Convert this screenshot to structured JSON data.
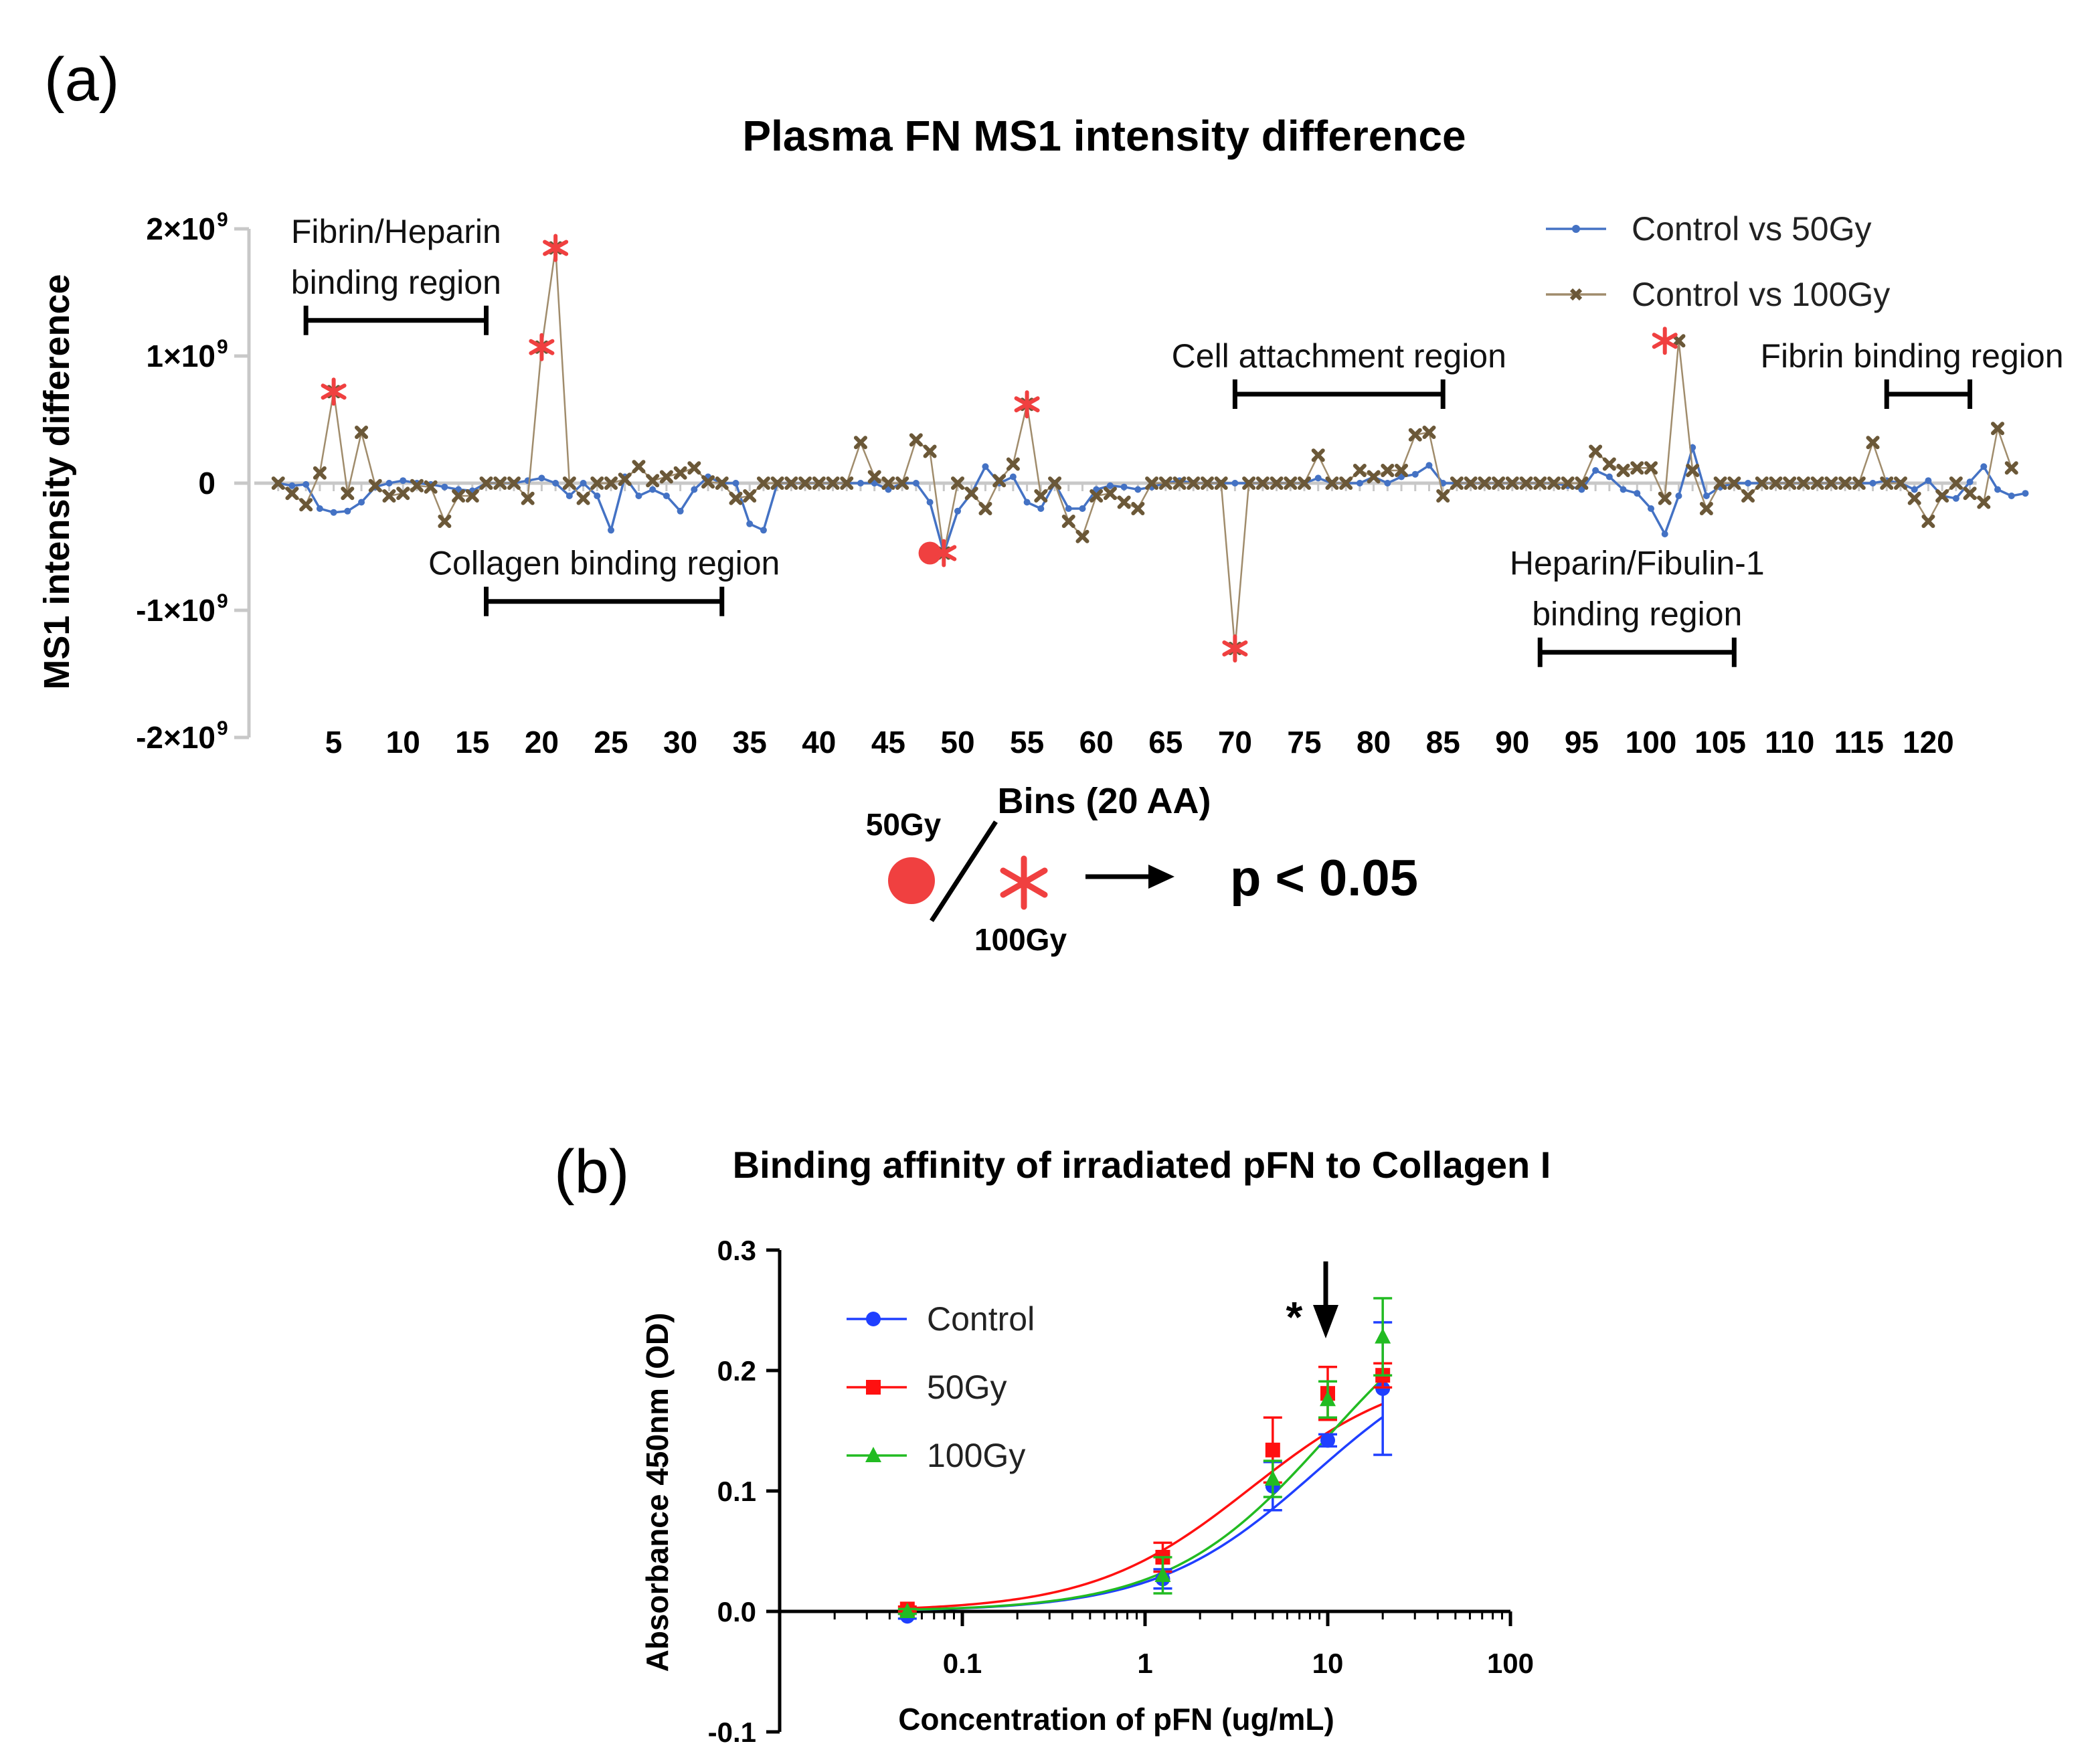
{
  "panel_a": {
    "letter": "(a)",
    "annotation": {
      "dose_50": "50Gy",
      "dose_100": "100Gy",
      "significance": "p < 0.05"
    }
  },
  "panel_b": {
    "letter": "(b)",
    "significance_mark": "*"
  },
  "chart_data": [
    {
      "type": "line",
      "title": "Plasma FN MS1 intensity difference",
      "xlabel": "Bins (20 AA)",
      "ylabel": "MS1 intensity difference",
      "xlim": [
        1,
        123
      ],
      "ylim": [
        -2000000000,
        2000000000
      ],
      "x_ticks": [
        5,
        10,
        15,
        20,
        25,
        30,
        35,
        40,
        45,
        50,
        55,
        60,
        65,
        70,
        75,
        80,
        85,
        90,
        95,
        100,
        105,
        110,
        115,
        120
      ],
      "y_ticks": [
        {
          "value": 2000000000,
          "label": "2×10",
          "exp": "9"
        },
        {
          "value": 1000000000,
          "label": "1×10",
          "exp": "9"
        },
        {
          "value": 0,
          "label": "0",
          "exp": ""
        },
        {
          "value": -1000000000,
          "label": "-1×10",
          "exp": "9"
        },
        {
          "value": -2000000000,
          "label": "-2×10",
          "exp": "9"
        }
      ],
      "legend_position": "top-right",
      "series": [
        {
          "name": "Control vs 50Gy",
          "color": "#4472c4",
          "marker": "dot",
          "values_e9": [
            0,
            -0.02,
            -0.01,
            -0.2,
            -0.23,
            -0.22,
            -0.15,
            -0.03,
            0,
            0.02,
            0,
            -0.01,
            -0.03,
            -0.05,
            -0.06,
            0,
            0,
            0,
            0.02,
            0.04,
            0,
            -0.1,
            0,
            -0.1,
            -0.37,
            0.05,
            -0.1,
            -0.05,
            -0.1,
            -0.22,
            -0.05,
            0.05,
            0,
            0,
            -0.32,
            -0.37,
            0,
            0,
            0,
            0,
            0,
            0,
            0,
            0,
            -0.05,
            0,
            0,
            -0.15,
            -0.55,
            -0.22,
            -0.08,
            0.13,
            0,
            0.05,
            -0.15,
            -0.2,
            0,
            -0.2,
            -0.2,
            -0.05,
            -0.02,
            -0.03,
            -0.05,
            -0.03,
            0,
            0.02,
            0,
            0,
            0,
            0,
            0,
            0,
            0,
            0,
            0,
            0.04,
            0,
            0,
            0,
            0.05,
            0,
            0.05,
            0.07,
            0.14,
            0,
            0,
            0,
            0,
            0,
            0,
            0,
            0,
            0,
            -0.02,
            -0.05,
            0.1,
            0.05,
            -0.05,
            -0.08,
            -0.2,
            -0.4,
            -0.1,
            0.28,
            -0.1,
            -0.03,
            0,
            0,
            0,
            0,
            0,
            0,
            0,
            0,
            0,
            0,
            0,
            0.02,
            0,
            -0.05,
            0.02,
            -0.1,
            -0.12,
            0.01,
            0.13,
            -0.05,
            -0.1,
            -0.08
          ]
        },
        {
          "name": "Control vs 100Gy",
          "color": "#a08c6c",
          "marker": "x",
          "values_e9": [
            0,
            -0.08,
            -0.17,
            0.08,
            0.72,
            -0.08,
            0.4,
            -0.02,
            -0.1,
            -0.08,
            -0.02,
            -0.03,
            -0.3,
            -0.1,
            -0.1,
            0,
            0,
            0,
            -0.12,
            1.07,
            1.85,
            0,
            -0.12,
            0,
            0,
            0.03,
            0.13,
            0.02,
            0.05,
            0.08,
            0.12,
            0.01,
            0,
            -0.12,
            -0.1,
            0,
            0,
            0,
            0,
            0,
            0,
            0,
            0.32,
            0.05,
            0,
            0,
            0.34,
            0.25,
            -0.55,
            0,
            -0.08,
            -0.2,
            0.02,
            0.15,
            0.62,
            -0.1,
            0,
            -0.3,
            -0.42,
            -0.1,
            -0.08,
            -0.15,
            -0.2,
            0,
            0,
            0,
            0,
            0,
            0,
            -1.3,
            0,
            0,
            0,
            0,
            0,
            0.22,
            0,
            0,
            0.1,
            0.05,
            0.1,
            0.1,
            0.38,
            0.4,
            -0.1,
            0,
            0,
            0,
            0,
            0,
            0,
            0,
            0,
            0,
            0,
            0.25,
            0.15,
            0.1,
            0.12,
            0.12,
            -0.12,
            1.12,
            0.1,
            -0.2,
            0,
            0,
            -0.1,
            0,
            0,
            0,
            0,
            0,
            0,
            0,
            0,
            0.32,
            0,
            0,
            -0.12,
            -0.3,
            -0.1,
            0,
            -0.08,
            -0.15,
            0.43,
            0.12
          ]
        }
      ],
      "significant_points": [
        {
          "x": 5,
          "y_e9": 0.72,
          "marker": "asterisk"
        },
        {
          "x": 20,
          "y_e9": 1.07,
          "marker": "asterisk"
        },
        {
          "x": 21,
          "y_e9": 1.85,
          "marker": "asterisk"
        },
        {
          "x": 48,
          "y_e9": -0.55,
          "marker": "dot"
        },
        {
          "x": 49,
          "y_e9": -0.55,
          "marker": "asterisk"
        },
        {
          "x": 55,
          "y_e9": 0.62,
          "marker": "asterisk"
        },
        {
          "x": 70,
          "y_e9": -1.3,
          "marker": "asterisk"
        },
        {
          "x": 101,
          "y_e9": 1.12,
          "marker": "asterisk"
        }
      ],
      "regions": [
        {
          "lines": [
            "Fibrin/Heparin",
            "binding region"
          ],
          "x_start": 3,
          "x_end": 16,
          "y_e9": 1.28
        },
        {
          "lines": [
            "Collagen binding region"
          ],
          "x_start": 16,
          "x_end": 33,
          "y_e9": -0.93
        },
        {
          "lines": [
            "Cell attachment region"
          ],
          "x_start": 70,
          "x_end": 85,
          "y_e9": 0.7
        },
        {
          "lines": [
            "Heparin/Fibulin-1",
            "binding region"
          ],
          "x_start": 92,
          "x_end": 106,
          "y_e9": -1.33
        },
        {
          "lines": [
            "Fibrin binding region"
          ],
          "x_start": 117,
          "x_end": 123,
          "y_e9": 0.7
        }
      ]
    },
    {
      "type": "line",
      "title": "Binding affinity of irradiated pFN to Collagen I",
      "xlabel": "Concentration of pFN (ug/mL)",
      "ylabel": "Absorbance 450nm (OD)",
      "x_scale": "log",
      "xlim": [
        0.01,
        100
      ],
      "ylim": [
        -0.1,
        0.3
      ],
      "x_ticks": [
        {
          "value": 0.1,
          "label": "0.1"
        },
        {
          "value": 1,
          "label": "1"
        },
        {
          "value": 10,
          "label": "10"
        },
        {
          "value": 100,
          "label": "100"
        }
      ],
      "y_ticks": [
        {
          "value": 0.3,
          "label": "0.3"
        },
        {
          "value": 0.2,
          "label": "0.2"
        },
        {
          "value": 0.1,
          "label": "0.1"
        },
        {
          "value": 0.0,
          "label": "0.0"
        },
        {
          "value": -0.1,
          "label": "-0.1"
        }
      ],
      "legend_position": "top-left",
      "x": [
        0.05,
        1.25,
        5,
        10,
        20
      ],
      "series": [
        {
          "name": "Control",
          "color": "#1f3fff",
          "marker": "circle",
          "values": [
            -0.004,
            0.027,
            0.104,
            0.142,
            0.185
          ],
          "errors": [
            0.002,
            0.008,
            0.02,
            0.005,
            0.055
          ],
          "fit": {
            "top": 0.23,
            "ec50": 8.5,
            "bottom": 0.0
          }
        },
        {
          "name": "50Gy",
          "color": "#ff1010",
          "marker": "square",
          "values": [
            0.002,
            0.045,
            0.134,
            0.181,
            0.196
          ],
          "errors": [
            0.002,
            0.012,
            0.027,
            0.022,
            0.01
          ],
          "fit": {
            "top": 0.205,
            "ec50": 3.8,
            "bottom": 0.0
          }
        },
        {
          "name": "100Gy",
          "color": "#22bb22",
          "marker": "triangle",
          "values": [
            0.0,
            0.03,
            0.11,
            0.176,
            0.228
          ],
          "errors": [
            0.002,
            0.015,
            0.015,
            0.015,
            0.032
          ],
          "fit": {
            "top": 0.29,
            "ec50": 10.0,
            "bottom": 0.0
          }
        }
      ]
    }
  ]
}
